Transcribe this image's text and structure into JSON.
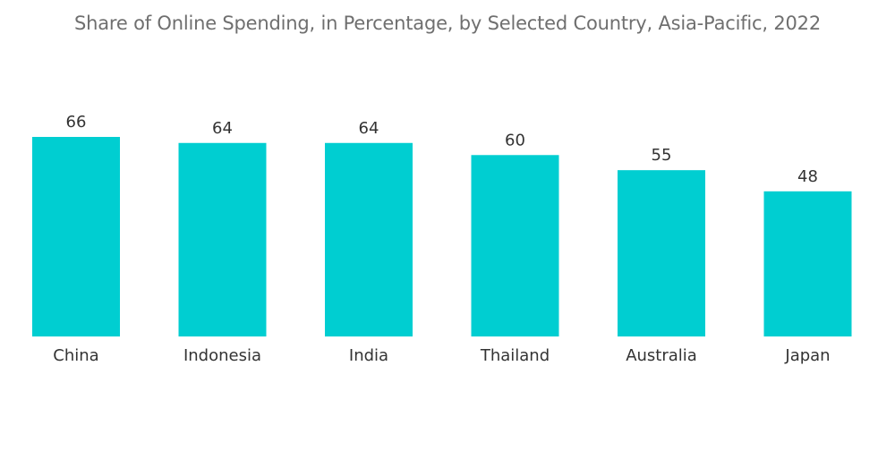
{
  "chart_data": {
    "type": "bar",
    "title": "Share of Online Spending, in Percentage, by Selected Country, Asia-Pacific, 2022",
    "categories": [
      "China",
      "Indonesia",
      "India",
      "Thailand",
      "Australia",
      "Japan"
    ],
    "values": [
      66,
      64,
      64,
      60,
      55,
      48
    ],
    "xlabel": "",
    "ylabel": "",
    "ylim": [
      0,
      66
    ],
    "grid": false,
    "bar_color": "#00CED1"
  }
}
